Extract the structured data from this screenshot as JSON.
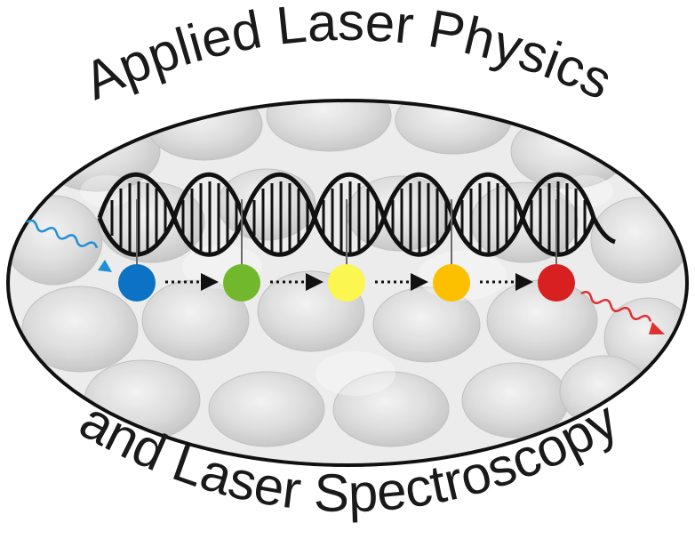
{
  "logo": {
    "top_text": "Applied Laser Physics",
    "bottom_text": "and Laser Spectroscopy"
  },
  "colors": {
    "outline": "#111111",
    "input_photon": "#1e90d8",
    "output_photon": "#e03030",
    "dots": [
      "#0b72c4",
      "#72b82c",
      "#fcf650",
      "#fcc000",
      "#d82020"
    ]
  }
}
